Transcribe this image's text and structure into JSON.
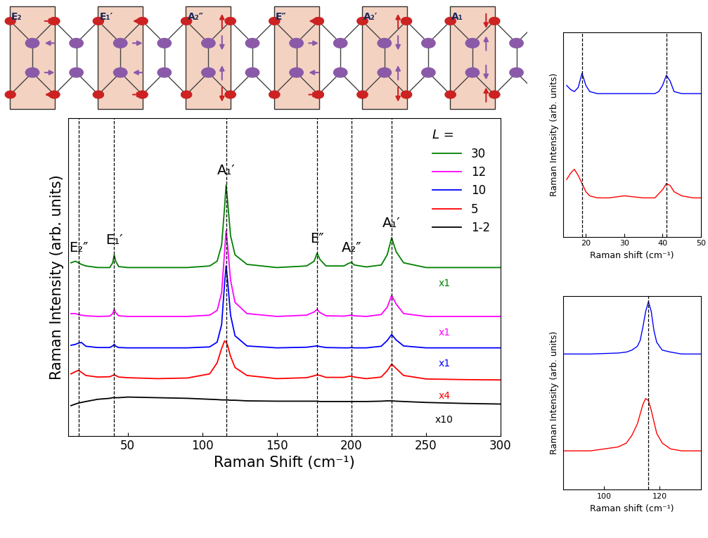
{
  "chart_data": [
    {
      "type": "line",
      "x_label": "Raman Shift (cm⁻¹)",
      "y_label": "Raman Intensity (arb. units)",
      "x": [
        12,
        15,
        17,
        19,
        22,
        30,
        38,
        40,
        41,
        42,
        44,
        50,
        70,
        90,
        105,
        110,
        113,
        115,
        116,
        117,
        119,
        122,
        130,
        150,
        170,
        175,
        177,
        179,
        183,
        195,
        198,
        200,
        202,
        210,
        220,
        224,
        227,
        230,
        235,
        250,
        275,
        300
      ],
      "xlim": [
        10,
        300
      ],
      "xticks": [
        50,
        100,
        150,
        200,
        250,
        300
      ],
      "ylim": [
        0,
        100
      ],
      "tick_labels": "x",
      "legend": "upper right",
      "legend_title": "L =",
      "series": [
        {
          "name": "30",
          "color": "#008000",
          "factor_label": "x1",
          "values": [
            54.5,
            55,
            54.5,
            54,
            53.5,
            53,
            53,
            54.5,
            57,
            55,
            53.3,
            53,
            53,
            53,
            53.5,
            55,
            60,
            72,
            79,
            74,
            63,
            57,
            54,
            53,
            53.5,
            55,
            57.5,
            55.5,
            53.5,
            53.5,
            54.3,
            54.6,
            53.8,
            53.2,
            53.8,
            57,
            62.4,
            58,
            54.5,
            53,
            53,
            53
          ]
        },
        {
          "name": "12",
          "color": "#ff00ff",
          "factor_label": "x1",
          "values": [
            38.5,
            38.5,
            38.2,
            38,
            37.8,
            37.6,
            37.7,
            38.5,
            39.8,
            38.8,
            37.8,
            37.6,
            37.6,
            37.6,
            38,
            39.5,
            45,
            58,
            64.6,
            60,
            49,
            42,
            38.5,
            37.6,
            38,
            39,
            39.8,
            38.8,
            37.8,
            37.7,
            37.9,
            38,
            37.8,
            37.6,
            38.2,
            40.5,
            44.2,
            41.5,
            38.5,
            37.6,
            37.6,
            37.6
          ]
        },
        {
          "name": "10",
          "color": "#0000ff",
          "factor_label": "x1",
          "values": [
            28.5,
            28.8,
            29.2,
            29.4,
            28.2,
            27.8,
            27.8,
            28.3,
            28.8,
            28.2,
            27.8,
            27.7,
            27.7,
            27.7,
            28,
            29.5,
            35,
            48,
            53.5,
            49,
            38,
            31.5,
            28.3,
            27.7,
            27.9,
            28.2,
            28.3,
            28.1,
            27.8,
            27.7,
            27.7,
            27.8,
            27.7,
            27.7,
            28.2,
            30,
            31.9,
            30.2,
            28.3,
            27.7,
            27.7,
            27.7
          ]
        },
        {
          "name": "5",
          "color": "#ff0000",
          "factor_label": "x4",
          "values": [
            19.5,
            20.2,
            20.6,
            20,
            19,
            18.5,
            18.6,
            19,
            19.2,
            19,
            18.5,
            18.3,
            18,
            18.2,
            19.5,
            23,
            27.5,
            29.9,
            29.5,
            28.5,
            25,
            21.5,
            19,
            18,
            18.3,
            18.9,
            19.2,
            19,
            18.4,
            18.4,
            18.7,
            18.8,
            18.5,
            18,
            18.5,
            20.5,
            22.6,
            21.2,
            19,
            17.9,
            17.7,
            17.6
          ]
        },
        {
          "name": "1-2",
          "color": "#000000",
          "factor_label": "x10",
          "values": [
            9.5,
            10,
            10.3,
            10.5,
            10.8,
            11.5,
            11.8,
            12,
            12,
            12,
            12,
            12.2,
            12,
            11.8,
            11.5,
            11.4,
            11.3,
            11.3,
            11.3,
            11.3,
            11.2,
            11.2,
            11,
            10.9,
            10.9,
            10.9,
            10.9,
            10.8,
            10.8,
            10.8,
            10.8,
            10.8,
            10.8,
            10.8,
            10.9,
            11,
            11,
            10.9,
            10.8,
            10.5,
            10.2,
            10
          ]
        }
      ],
      "annotations": [
        {
          "text": "E₂″",
          "x": 17
        },
        {
          "text": "E₁′",
          "x": 41
        },
        {
          "text": "A₁′",
          "x": 116
        },
        {
          "text": "E″",
          "x": 177
        },
        {
          "text": "A₂″",
          "x": 200
        },
        {
          "text": "A₁′",
          "x": 227
        }
      ]
    },
    {
      "type": "line",
      "x_label": "Raman shift (cm⁻¹)",
      "y_label": "Raman Intensity (arb. units)",
      "x": [
        15,
        16,
        17,
        18,
        19,
        20,
        21,
        23,
        26,
        30,
        35,
        38,
        39,
        40,
        41,
        42,
        43,
        45,
        48,
        50
      ],
      "xlim": [
        14,
        50
      ],
      "xticks": [
        20,
        30,
        40,
        50
      ],
      "ylim": [
        0,
        100
      ],
      "tick_labels": "x",
      "series": [
        {
          "color": "#0000ff",
          "values": [
            74,
            72,
            71,
            73,
            80,
            74,
            71,
            70,
            70,
            70,
            70,
            70,
            71,
            74,
            79,
            76,
            71,
            70,
            70,
            70
          ]
        },
        {
          "color": "#ff0000",
          "values": [
            28,
            31,
            33,
            30,
            26,
            22,
            20,
            19,
            19,
            20,
            19,
            19,
            21,
            23,
            26,
            25,
            22,
            20,
            19,
            19
          ]
        }
      ],
      "reference_lines": [
        19,
        41
      ]
    },
    {
      "type": "line",
      "x_label": "Raman shift (cm⁻¹)",
      "y_label": "Raman Intensity (arb. units)",
      "x": [
        85,
        95,
        105,
        108,
        110,
        112,
        113,
        114,
        115,
        116,
        117,
        118,
        119,
        121,
        124,
        128,
        135
      ],
      "xlim": [
        85,
        135
      ],
      "xticks": [
        100,
        120
      ],
      "ylim": [
        0,
        100
      ],
      "tick_labels": "x",
      "series": [
        {
          "color": "#0000ff",
          "values": [
            70,
            70,
            70.5,
            71,
            72,
            74,
            77,
            84,
            92,
            97,
            92,
            82,
            76,
            72,
            71,
            70,
            70
          ]
        },
        {
          "color": "#ff0000",
          "values": [
            20,
            20,
            22,
            24,
            28,
            34,
            39,
            44,
            47,
            46,
            41,
            35,
            29,
            24,
            21,
            20,
            20
          ]
        }
      ],
      "reference_lines": [
        116
      ]
    }
  ],
  "schematic": {
    "modes": [
      "E₂",
      "E₁′",
      "A₂″",
      "E″",
      "A₂′",
      "A₁"
    ]
  }
}
